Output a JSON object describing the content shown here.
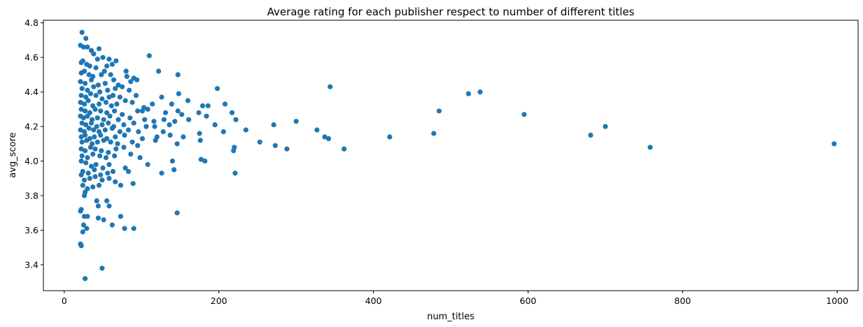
{
  "chart_data": {
    "type": "scatter",
    "title": "Average rating for each publisher respect to number of different titles",
    "xlabel": "num_titles",
    "ylabel": "avg_score",
    "xlim": [
      -27,
      1027
    ],
    "ylim": [
      3.25,
      4.815
    ],
    "xticks": [
      0,
      200,
      400,
      600,
      800,
      1000
    ],
    "yticks": [
      3.4,
      3.6,
      3.8,
      4.0,
      4.2,
      4.4,
      4.6,
      4.8
    ],
    "xtick_labels": [
      "0",
      "200",
      "400",
      "600",
      "800",
      "1000"
    ],
    "ytick_labels": [
      "3.4",
      "3.6",
      "3.8",
      "4.0",
      "4.2",
      "4.4",
      "4.6",
      "4.8"
    ],
    "grid": false,
    "marker_color": "#1f77b4",
    "points": [
      [
        23,
        4.745
      ],
      [
        28,
        4.71
      ],
      [
        21,
        4.67
      ],
      [
        25,
        4.66
      ],
      [
        30,
        4.66
      ],
      [
        35,
        4.64
      ],
      [
        38,
        4.62
      ],
      [
        45,
        4.65
      ],
      [
        50,
        4.6
      ],
      [
        43,
        4.59
      ],
      [
        58,
        4.59
      ],
      [
        67,
        4.58
      ],
      [
        22,
        4.57
      ],
      [
        24,
        4.58
      ],
      [
        29,
        4.56
      ],
      [
        33,
        4.55
      ],
      [
        41,
        4.54
      ],
      [
        55,
        4.55
      ],
      [
        62,
        4.56
      ],
      [
        110,
        4.61
      ],
      [
        22,
        4.51
      ],
      [
        26,
        4.52
      ],
      [
        32,
        4.5
      ],
      [
        37,
        4.49
      ],
      [
        48,
        4.5
      ],
      [
        52,
        4.52
      ],
      [
        60,
        4.5
      ],
      [
        64,
        4.47
      ],
      [
        80,
        4.52
      ],
      [
        81,
        4.49
      ],
      [
        90,
        4.48
      ],
      [
        94,
        4.47
      ],
      [
        122,
        4.52
      ],
      [
        147,
        4.5
      ],
      [
        21,
        4.46
      ],
      [
        27,
        4.45
      ],
      [
        35,
        4.47
      ],
      [
        44,
        4.44
      ],
      [
        53,
        4.45
      ],
      [
        70,
        4.44
      ],
      [
        86,
        4.46
      ],
      [
        23,
        4.42
      ],
      [
        30,
        4.41
      ],
      [
        38,
        4.43
      ],
      [
        46,
        4.4
      ],
      [
        56,
        4.41
      ],
      [
        66,
        4.42
      ],
      [
        75,
        4.43
      ],
      [
        84,
        4.41
      ],
      [
        22,
        4.38
      ],
      [
        28,
        4.37
      ],
      [
        34,
        4.39
      ],
      [
        41,
        4.38
      ],
      [
        49,
        4.36
      ],
      [
        58,
        4.37
      ],
      [
        63,
        4.38
      ],
      [
        72,
        4.37
      ],
      [
        79,
        4.35
      ],
      [
        93,
        4.38
      ],
      [
        126,
        4.37
      ],
      [
        148,
        4.39
      ],
      [
        198,
        4.42
      ],
      [
        344,
        4.43
      ],
      [
        523,
        4.39
      ],
      [
        538,
        4.4
      ],
      [
        21,
        4.34
      ],
      [
        26,
        4.33
      ],
      [
        31,
        4.35
      ],
      [
        37,
        4.32
      ],
      [
        45,
        4.33
      ],
      [
        54,
        4.34
      ],
      [
        61,
        4.32
      ],
      [
        68,
        4.33
      ],
      [
        88,
        4.34
      ],
      [
        103,
        4.31
      ],
      [
        114,
        4.33
      ],
      [
        139,
        4.33
      ],
      [
        160,
        4.35
      ],
      [
        179,
        4.32
      ],
      [
        186,
        4.32
      ],
      [
        208,
        4.33
      ],
      [
        22,
        4.3
      ],
      [
        27,
        4.29
      ],
      [
        33,
        4.28
      ],
      [
        40,
        4.3
      ],
      [
        47,
        4.29
      ],
      [
        55,
        4.28
      ],
      [
        65,
        4.29
      ],
      [
        75,
        4.27
      ],
      [
        95,
        4.29
      ],
      [
        101,
        4.29
      ],
      [
        108,
        4.3
      ],
      [
        131,
        4.28
      ],
      [
        147,
        4.29
      ],
      [
        152,
        4.27
      ],
      [
        174,
        4.28
      ],
      [
        184,
        4.26
      ],
      [
        217,
        4.28
      ],
      [
        485,
        4.29
      ],
      [
        595,
        4.27
      ],
      [
        21,
        4.26
      ],
      [
        25,
        4.25
      ],
      [
        30,
        4.26
      ],
      [
        36,
        4.24
      ],
      [
        43,
        4.25
      ],
      [
        51,
        4.24
      ],
      [
        59,
        4.26
      ],
      [
        70,
        4.24
      ],
      [
        85,
        4.25
      ],
      [
        104,
        4.24
      ],
      [
        116,
        4.23
      ],
      [
        129,
        4.24
      ],
      [
        143,
        4.23
      ],
      [
        161,
        4.24
      ],
      [
        222,
        4.24
      ],
      [
        23,
        4.22
      ],
      [
        28,
        4.21
      ],
      [
        35,
        4.22
      ],
      [
        42,
        4.2
      ],
      [
        49,
        4.21
      ],
      [
        57,
        4.22
      ],
      [
        64,
        4.2
      ],
      [
        77,
        4.21
      ],
      [
        90,
        4.22
      ],
      [
        106,
        4.2
      ],
      [
        117,
        4.2
      ],
      [
        136,
        4.21
      ],
      [
        195,
        4.21
      ],
      [
        271,
        4.21
      ],
      [
        300,
        4.23
      ],
      [
        21,
        4.18
      ],
      [
        26,
        4.17
      ],
      [
        32,
        4.19
      ],
      [
        38,
        4.18
      ],
      [
        45,
        4.17
      ],
      [
        53,
        4.18
      ],
      [
        62,
        4.19
      ],
      [
        72,
        4.17
      ],
      [
        83,
        4.18
      ],
      [
        96,
        4.17
      ],
      [
        128,
        4.17
      ],
      [
        175,
        4.16
      ],
      [
        206,
        4.17
      ],
      [
        235,
        4.18
      ],
      [
        327,
        4.18
      ],
      [
        478,
        4.16
      ],
      [
        700,
        4.2
      ],
      [
        22,
        4.14
      ],
      [
        27,
        4.15
      ],
      [
        33,
        4.13
      ],
      [
        39,
        4.14
      ],
      [
        47,
        4.15
      ],
      [
        55,
        4.13
      ],
      [
        66,
        4.14
      ],
      [
        78,
        4.15
      ],
      [
        101,
        4.13
      ],
      [
        120,
        4.14
      ],
      [
        137,
        4.15
      ],
      [
        154,
        4.14
      ],
      [
        337,
        4.14
      ],
      [
        342,
        4.13
      ],
      [
        421,
        4.14
      ],
      [
        681,
        4.15
      ],
      [
        23,
        4.11
      ],
      [
        29,
        4.12
      ],
      [
        36,
        4.1
      ],
      [
        43,
        4.11
      ],
      [
        51,
        4.12
      ],
      [
        60,
        4.11
      ],
      [
        69,
        4.1
      ],
      [
        88,
        4.11
      ],
      [
        95,
        4.09
      ],
      [
        118,
        4.12
      ],
      [
        146,
        4.1
      ],
      [
        176,
        4.12
      ],
      [
        253,
        4.11
      ],
      [
        273,
        4.09
      ],
      [
        996,
        4.1
      ],
      [
        22,
        4.07
      ],
      [
        27,
        4.06
      ],
      [
        34,
        4.08
      ],
      [
        40,
        4.07
      ],
      [
        48,
        4.06
      ],
      [
        57,
        4.05
      ],
      [
        67,
        4.07
      ],
      [
        77,
        4.08
      ],
      [
        219,
        4.06
      ],
      [
        220,
        4.08
      ],
      [
        288,
        4.07
      ],
      [
        362,
        4.07
      ],
      [
        758,
        4.08
      ],
      [
        23,
        4.03
      ],
      [
        30,
        4.02
      ],
      [
        37,
        4.04
      ],
      [
        46,
        4.03
      ],
      [
        54,
        4.02
      ],
      [
        65,
        4.03
      ],
      [
        86,
        4.04
      ],
      [
        98,
        4.02
      ],
      [
        140,
        4.0
      ],
      [
        177,
        4.01
      ],
      [
        182,
        4.0
      ],
      [
        22,
        4.0
      ],
      [
        28,
        3.99
      ],
      [
        35,
        3.97
      ],
      [
        41,
        3.98
      ],
      [
        50,
        3.96
      ],
      [
        58,
        3.98
      ],
      [
        79,
        3.96
      ],
      [
        108,
        3.98
      ],
      [
        142,
        3.95
      ],
      [
        24,
        3.94
      ],
      [
        31,
        3.93
      ],
      [
        39,
        3.95
      ],
      [
        47,
        3.92
      ],
      [
        56,
        3.93
      ],
      [
        63,
        3.94
      ],
      [
        83,
        3.94
      ],
      [
        126,
        3.93
      ],
      [
        221,
        3.93
      ],
      [
        22,
        3.92
      ],
      [
        26,
        3.89
      ],
      [
        33,
        3.9
      ],
      [
        40,
        3.91
      ],
      [
        49,
        3.89
      ],
      [
        58,
        3.9
      ],
      [
        66,
        3.88
      ],
      [
        73,
        3.86
      ],
      [
        89,
        3.87
      ],
      [
        24,
        3.86
      ],
      [
        30,
        3.84
      ],
      [
        37,
        3.85
      ],
      [
        45,
        3.86
      ],
      [
        27,
        3.82
      ],
      [
        26,
        3.8
      ],
      [
        42,
        3.77
      ],
      [
        55,
        3.77
      ],
      [
        44,
        3.74
      ],
      [
        58,
        3.74
      ],
      [
        22,
        3.72
      ],
      [
        21,
        3.71
      ],
      [
        26,
        3.68
      ],
      [
        30,
        3.68
      ],
      [
        44,
        3.67
      ],
      [
        73,
        3.68
      ],
      [
        146,
        3.7
      ],
      [
        51,
        3.66
      ],
      [
        25,
        3.63
      ],
      [
        29,
        3.61
      ],
      [
        62,
        3.63
      ],
      [
        78,
        3.61
      ],
      [
        90,
        3.61
      ],
      [
        24,
        3.59
      ],
      [
        21,
        3.52
      ],
      [
        22,
        3.51
      ],
      [
        49,
        3.38
      ],
      [
        27,
        3.32
      ]
    ]
  }
}
